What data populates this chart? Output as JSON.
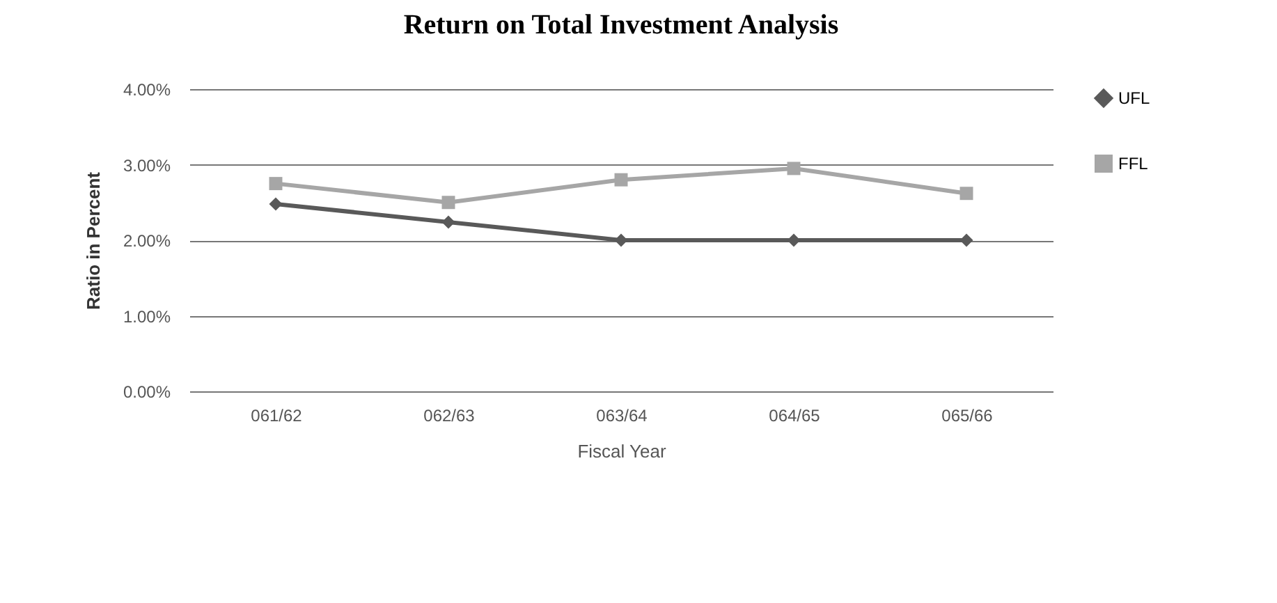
{
  "chart_data": {
    "type": "line",
    "title": "Return on Total Investment Analysis",
    "xlabel": "Fiscal Year",
    "ylabel": "Ratio in Percent",
    "categories": [
      "061/62",
      "062/63",
      "063/64",
      "064/65",
      "065/66"
    ],
    "series": [
      {
        "name": "UFL",
        "color": "#595959",
        "marker": "diamond",
        "values": [
          2.48,
          2.24,
          2.0,
          2.0,
          2.0
        ]
      },
      {
        "name": "FFL",
        "color": "#a6a6a6",
        "marker": "square",
        "values": [
          2.75,
          2.5,
          2.8,
          2.95,
          2.62
        ]
      }
    ],
    "ylim": [
      0,
      4
    ],
    "yticks": [
      {
        "value": 0,
        "label": "0.00%"
      },
      {
        "value": 1,
        "label": "1.00%"
      },
      {
        "value": 2,
        "label": "2.00%"
      },
      {
        "value": 3,
        "label": "3.00%"
      },
      {
        "value": 4,
        "label": "4.00%"
      }
    ],
    "grid": "y",
    "legend": "right",
    "line_style": "solid"
  }
}
